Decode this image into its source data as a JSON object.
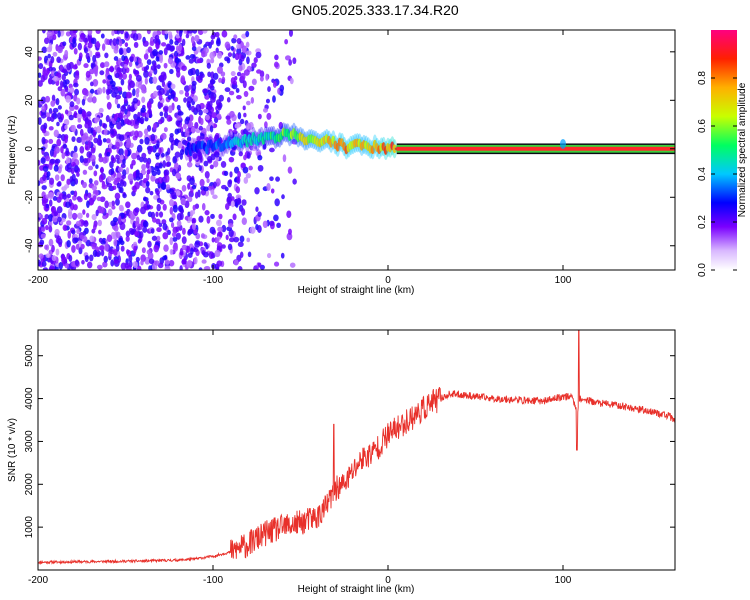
{
  "title": "GN05.2025.333.17.34.R20",
  "chart_data": [
    {
      "type": "heatmap",
      "name": "spectrogram",
      "xlabel": "Height of straight line (km)",
      "ylabel": "Frequency (Hz)",
      "xlim": [
        -200,
        164
      ],
      "ylim": [
        -50,
        49
      ],
      "xticks": [
        -200,
        -100,
        0,
        100
      ],
      "yticks": [
        -40,
        -20,
        0,
        20,
        40
      ],
      "colorbar": {
        "label": "Normalized spectral amplitude",
        "range": [
          0,
          1
        ],
        "ticks": [
          0.0,
          0.2,
          0.4,
          0.6,
          0.8
        ],
        "colors": [
          "#ffffff",
          "#7a00ff",
          "#0000ff",
          "#00c8ff",
          "#00ff60",
          "#c8ff00",
          "#ffb000",
          "#ff2000",
          "#ff0080"
        ]
      },
      "signal_track": [
        {
          "x": -115,
          "f": 0,
          "amp": 0.3
        },
        {
          "x": -100,
          "f": 1,
          "amp": 0.35
        },
        {
          "x": -85,
          "f": 3,
          "amp": 0.45
        },
        {
          "x": -70,
          "f": 5,
          "amp": 0.5
        },
        {
          "x": -55,
          "f": 6,
          "amp": 0.65
        },
        {
          "x": -45,
          "f": 4,
          "amp": 0.75
        },
        {
          "x": -35,
          "f": 3,
          "amp": 0.8
        },
        {
          "x": -25,
          "f": 1,
          "amp": 0.85
        },
        {
          "x": -15,
          "f": 1,
          "amp": 0.8
        },
        {
          "x": -5,
          "f": 0.5,
          "amp": 0.85
        },
        {
          "x": 5,
          "f": 0,
          "amp": 0.95
        },
        {
          "x": 100,
          "f": 0,
          "amp": 0.95
        },
        {
          "x": 164,
          "f": 0,
          "amp": 0.95
        }
      ],
      "noise_region": [
        -200,
        -110
      ]
    },
    {
      "type": "line",
      "name": "snr",
      "xlabel": "Height of straight line (km)",
      "ylabel": "SNR (10 * v/v)",
      "xlim": [
        -200,
        164
      ],
      "ylim": [
        0,
        5600
      ],
      "xticks": [
        -200,
        -100,
        0,
        100
      ],
      "yticks": [
        1000,
        2000,
        3000,
        4000,
        5000
      ],
      "series": [
        {
          "name": "SNR",
          "color": "#e8302a",
          "x": [
            -200,
            -180,
            -160,
            -140,
            -120,
            -110,
            -100,
            -90,
            -80,
            -70,
            -60,
            -50,
            -40,
            -35,
            -30,
            -25,
            -20,
            -15,
            -10,
            -5,
            0,
            5,
            10,
            15,
            20,
            25,
            30,
            35,
            40,
            50,
            60,
            70,
            80,
            90,
            100,
            105,
            108,
            110,
            115,
            120,
            130,
            140,
            150,
            160,
            164
          ],
          "y": [
            180,
            190,
            200,
            210,
            230,
            260,
            320,
            420,
            600,
            850,
            1000,
            1100,
            1250,
            1500,
            1900,
            2000,
            2300,
            2600,
            2700,
            2900,
            3150,
            3300,
            3450,
            3600,
            3750,
            3900,
            4000,
            4100,
            4100,
            4050,
            4000,
            3980,
            3950,
            3950,
            4050,
            4050,
            3700,
            4000,
            3950,
            3900,
            3850,
            3780,
            3700,
            3600,
            3500
          ]
        }
      ]
    }
  ]
}
